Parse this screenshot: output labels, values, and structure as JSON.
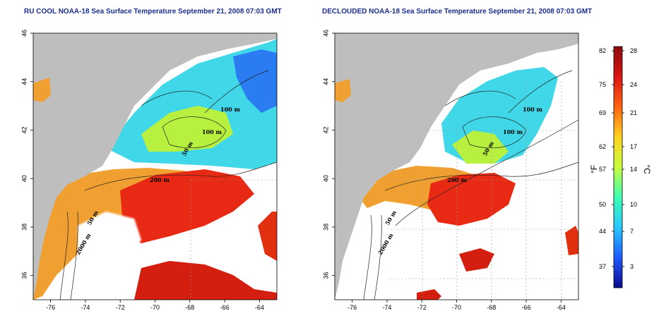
{
  "panels": [
    {
      "id": "left",
      "title": "RU COOL NOAA-18 Sea Surface Temperature September 21, 2008 07:03 GMT",
      "contour_labels": [
        "100 m",
        "100 m",
        "50 m",
        "200 m",
        "50 m",
        "2000 m"
      ]
    },
    {
      "id": "right",
      "title": "DECLOUDED NOAA-18 Sea Surface Temperature September 21, 2008 07:03 GMT",
      "contour_labels": [
        "100 m",
        "100 m",
        "50 m",
        "200 m",
        "50 m",
        "2000 m"
      ]
    }
  ],
  "map_data": {
    "lon_ticks": [
      "-76",
      "-74",
      "-72",
      "-70",
      "-68",
      "-66",
      "-64"
    ],
    "lat_ticks": [
      "46",
      "44",
      "42",
      "40",
      "38",
      "36"
    ],
    "lon_range": [
      -77.0,
      -63.0
    ],
    "lat_range": [
      35.0,
      46.0
    ]
  },
  "colorbar": {
    "fahrenheit_ticks": [
      "82",
      "75",
      "69",
      "62",
      "57",
      "50",
      "44",
      "37"
    ],
    "celsius_ticks": [
      "28",
      "24",
      "21",
      "17",
      "14",
      "10",
      "7",
      "3"
    ],
    "fahrenheit_unit": "°F",
    "celsius_unit": "°C",
    "colors": [
      "#0a0a8c",
      "#1e5aff",
      "#28c8ff",
      "#3cffb4",
      "#c8ff3c",
      "#ffd21e",
      "#ff6414",
      "#dc1414",
      "#8c0a0a"
    ]
  },
  "legend_colors": {
    "land": "#bebebe",
    "cloud": "#ffffff",
    "warm": "#e02010",
    "cool": "#40d0f0"
  }
}
